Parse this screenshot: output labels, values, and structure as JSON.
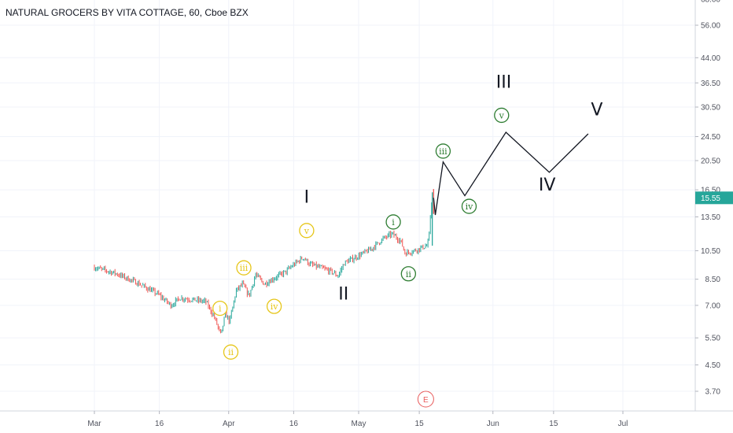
{
  "chart_data": {
    "type": "candlestick",
    "title": "NATURAL GROCERS BY VITA COTTAGE, 60, Cboe BZX",
    "y_scale": "log",
    "ylim": [
      3.4,
      68.0
    ],
    "price_axis_labels": [
      "68.00",
      "56.00",
      "44.00",
      "36.50",
      "30.50",
      "24.50",
      "20.50",
      "16.50",
      "13.50",
      "10.50",
      "8.50",
      "7.00",
      "5.50",
      "4.50",
      "3.70"
    ],
    "x_axis_labels": [
      "Mar",
      "16",
      "Apr",
      "16",
      "May",
      "15",
      "Jun",
      "15",
      "Jul"
    ],
    "last_price": "15.55",
    "last_price_color": "#26a69a",
    "up_color": "#26a69a",
    "down_color": "#ef5350",
    "series_anchor_points": [
      {
        "day": 0,
        "price": 9.3
      },
      {
        "day": 5,
        "price": 8.9
      },
      {
        "day": 10,
        "price": 8.3
      },
      {
        "day": 15,
        "price": 7.6
      },
      {
        "day": 18,
        "price": 7.0
      },
      {
        "day": 20,
        "price": 7.4
      },
      {
        "day": 23,
        "price": 7.3
      },
      {
        "day": 26,
        "price": 7.2
      },
      {
        "day": 28,
        "price": 6.4
      },
      {
        "day": 29.5,
        "price": 5.6
      },
      {
        "day": 30.5,
        "price": 6.6
      },
      {
        "day": 31.5,
        "price": 6.2
      },
      {
        "day": 33,
        "price": 7.8
      },
      {
        "day": 34.5,
        "price": 8.2
      },
      {
        "day": 36,
        "price": 7.5
      },
      {
        "day": 37.5,
        "price": 8.8
      },
      {
        "day": 39.5,
        "price": 8.2
      },
      {
        "day": 42,
        "price": 8.6
      },
      {
        "day": 44.5,
        "price": 9.0
      },
      {
        "day": 46,
        "price": 9.4
      },
      {
        "day": 48.5,
        "price": 10.0
      },
      {
        "day": 50,
        "price": 9.5
      },
      {
        "day": 52,
        "price": 9.3
      },
      {
        "day": 55,
        "price": 9.0
      },
      {
        "day": 56.5,
        "price": 8.7
      },
      {
        "day": 58,
        "price": 9.6
      },
      {
        "day": 60,
        "price": 9.9
      },
      {
        "day": 64,
        "price": 10.6
      },
      {
        "day": 67,
        "price": 11.5
      },
      {
        "day": 69,
        "price": 11.9
      },
      {
        "day": 71,
        "price": 11.3
      },
      {
        "day": 72,
        "price": 10.3
      },
      {
        "day": 74,
        "price": 10.5
      },
      {
        "day": 77,
        "price": 10.9
      },
      {
        "day": 77.5,
        "price": 11.4
      },
      {
        "day": 78,
        "price": 14.8
      },
      {
        "day": 78.3,
        "price": 15.55
      }
    ],
    "projection": [
      {
        "day": 78.3,
        "price": 15.55
      },
      {
        "day": 78.7,
        "price": 13.7
      },
      {
        "day": 80.5,
        "price": 20.3
      },
      {
        "day": 85.5,
        "price": 15.8
      },
      {
        "day": 95,
        "price": 25.3
      },
      {
        "day": 105,
        "price": 18.8
      },
      {
        "day": 114,
        "price": 25.0
      }
    ],
    "waves_major": [
      {
        "label": "I",
        "day": 49,
        "price": 15.0
      },
      {
        "label": "II",
        "day": 57.5,
        "price": 7.3
      },
      {
        "label": "III",
        "day": 94.5,
        "price": 35.2
      },
      {
        "label": "IV",
        "day": 104.5,
        "price": 16.4
      },
      {
        "label": "V",
        "day": 116,
        "price": 28.7
      }
    ],
    "waves_minor": [
      {
        "label": "i",
        "day": 29,
        "price": 6.85,
        "color": "#e6c619"
      },
      {
        "label": "ii",
        "day": 31.5,
        "price": 4.95,
        "color": "#e6c619"
      },
      {
        "label": "iii",
        "day": 34.5,
        "price": 9.25,
        "color": "#e6c619"
      },
      {
        "label": "iv",
        "day": 41.5,
        "price": 6.95,
        "color": "#e6c619"
      },
      {
        "label": "v",
        "day": 49,
        "price": 12.2,
        "color": "#e6c619"
      },
      {
        "label": "i",
        "day": 69,
        "price": 13.0,
        "color": "#2e7d32"
      },
      {
        "label": "ii",
        "day": 72.5,
        "price": 8.85,
        "color": "#2e7d32"
      },
      {
        "label": "iii",
        "day": 80.5,
        "price": 22.0,
        "color": "#2e7d32"
      },
      {
        "label": "iv",
        "day": 86.5,
        "price": 14.6,
        "color": "#2e7d32"
      },
      {
        "label": "v",
        "day": 94,
        "price": 28.7,
        "color": "#2e7d32"
      }
    ],
    "earnings_marker": {
      "label": "E",
      "day": 76.5
    }
  }
}
